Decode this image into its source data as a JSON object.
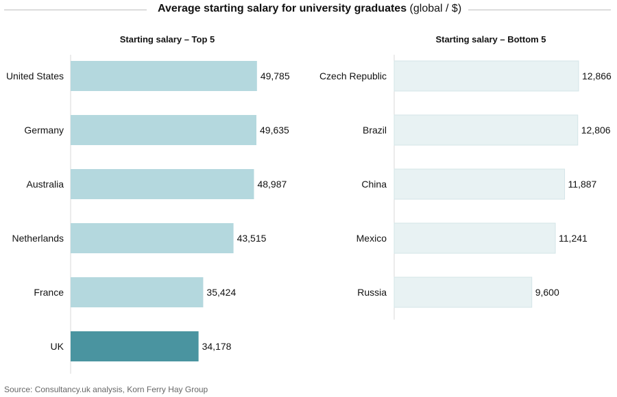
{
  "header": {
    "title_bold": "Average starting salary for university graduates",
    "title_rest": " (global / $)"
  },
  "footer": {
    "source": "Source: Consultancy.uk analysis, Korn Ferry Hay Group"
  },
  "colors": {
    "top_bar": "#b4d8de",
    "uk_bar": "#4a94a0",
    "bottom_bar": "#e8f2f3",
    "bottom_bar_stroke": "#d3e4e7",
    "axis": "#d9d9d9"
  },
  "chart_data": [
    {
      "type": "bar",
      "orientation": "horizontal",
      "title": "Starting salary – Top 5",
      "categories": [
        "United States",
        "Germany",
        "Australia",
        "Netherlands",
        "France",
        "UK"
      ],
      "values": [
        49785,
        49635,
        48987,
        43515,
        35424,
        34178
      ],
      "labels": [
        "49,785",
        "49,635",
        "48,987",
        "43,515",
        "35,424",
        "34,178"
      ],
      "highlight": "UK",
      "xlim": [
        0,
        50000
      ]
    },
    {
      "type": "bar",
      "orientation": "horizontal",
      "title": "Starting salary – Bottom 5",
      "categories": [
        "Czech Republic",
        "Brazil",
        "China",
        "Mexico",
        "Russia"
      ],
      "values": [
        12866,
        12806,
        11887,
        11241,
        9600
      ],
      "labels": [
        "12,866",
        "12,806",
        "11,887",
        "11,241",
        "9,600"
      ],
      "xlim": [
        0,
        12866
      ]
    }
  ]
}
